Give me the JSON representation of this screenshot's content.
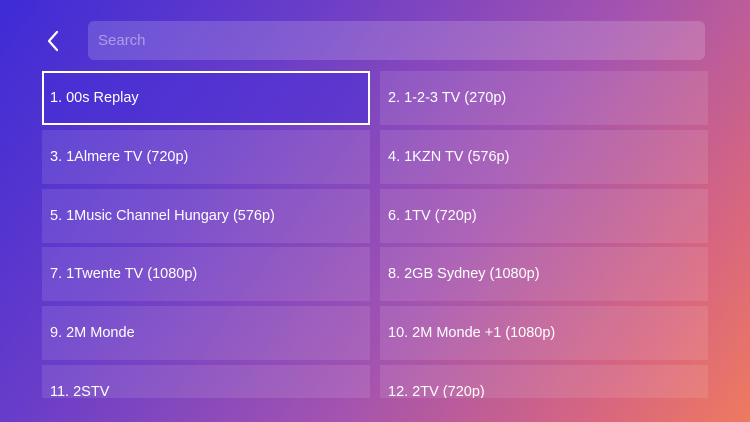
{
  "search": {
    "placeholder": "Search",
    "value": ""
  },
  "back_icon": "chevron-left-icon",
  "colors": {
    "gradient_start": "#3d2bd6",
    "gradient_end": "#ee7a5f",
    "focus_border": "#ffffff",
    "text": "#ffffff"
  },
  "channels": [
    {
      "label": "1. 00s Replay",
      "focused": true
    },
    {
      "label": "2. 1-2-3 TV (270p)",
      "focused": false
    },
    {
      "label": "3. 1Almere TV (720p)",
      "focused": false
    },
    {
      "label": "4. 1KZN TV (576p)",
      "focused": false
    },
    {
      "label": "5. 1Music Channel Hungary (576p)",
      "focused": false
    },
    {
      "label": "6. 1TV (720p)",
      "focused": false
    },
    {
      "label": "7. 1Twente TV (1080p)",
      "focused": false
    },
    {
      "label": "8. 2GB Sydney (1080p)",
      "focused": false
    },
    {
      "label": "9. 2M Monde",
      "focused": false
    },
    {
      "label": "10. 2M Monde +1 (1080p)",
      "focused": false
    },
    {
      "label": "11. 2STV",
      "focused": false
    },
    {
      "label": "12. 2TV (720p)",
      "focused": false
    }
  ]
}
